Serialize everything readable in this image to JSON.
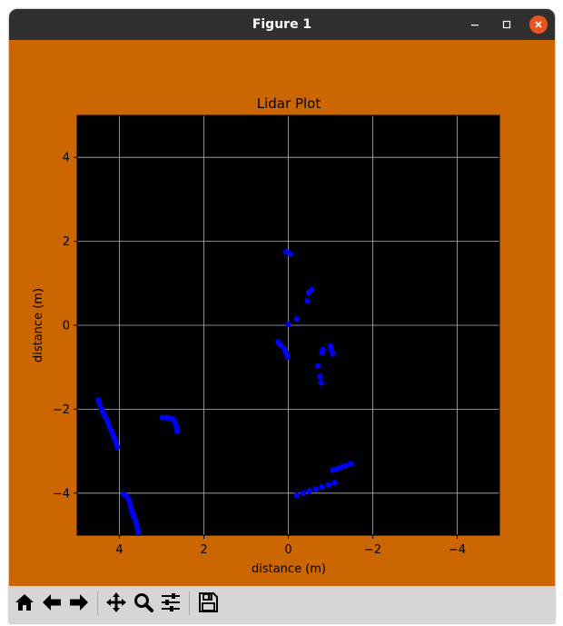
{
  "window": {
    "title": "Figure 1"
  },
  "toolbar": {
    "buttons": [
      {
        "name": "home-button",
        "icon": "home-icon"
      },
      {
        "name": "back-button",
        "icon": "arrow-left-icon"
      },
      {
        "name": "forward-button",
        "icon": "arrow-right-icon"
      },
      {
        "name": "pan-button",
        "icon": "move-icon"
      },
      {
        "name": "zoom-button",
        "icon": "magnifier-icon"
      },
      {
        "name": "configure-subplots-button",
        "icon": "sliders-icon"
      },
      {
        "name": "save-button",
        "icon": "floppy-disk-icon"
      }
    ]
  },
  "colors": {
    "figure_bg": "#cc6600",
    "axes_bg": "#000000",
    "points": "#0000ff",
    "grid": "#b0b0b0",
    "titlebar": "#2f2f2f",
    "close_button": "#e95420"
  },
  "chart_data": {
    "type": "scatter",
    "title": "Lidar Plot",
    "xlabel": "distance (m)",
    "ylabel": "distance (m)",
    "xlim": [
      5,
      -5
    ],
    "ylim": [
      5,
      -5
    ],
    "xticks": [
      4,
      2,
      0,
      -2,
      -4
    ],
    "xtick_labels": [
      "4",
      "2",
      "0",
      "−2",
      "−4"
    ],
    "yticks": [
      -4,
      -2,
      0,
      2,
      4
    ],
    "ytick_labels": [
      "−4",
      "−2",
      "0",
      "2",
      "4"
    ],
    "grid": true,
    "series": [
      {
        "points": [
          [
            3.55,
            -4.95
          ],
          [
            3.57,
            -4.85
          ],
          [
            3.6,
            -4.75
          ],
          [
            3.62,
            -4.65
          ],
          [
            3.66,
            -4.55
          ],
          [
            3.7,
            -4.45
          ],
          [
            3.73,
            -4.35
          ],
          [
            3.75,
            -4.25
          ],
          [
            3.78,
            -4.15
          ],
          [
            3.83,
            -4.07
          ],
          [
            3.9,
            -4.03
          ],
          [
            4.05,
            -2.9
          ],
          [
            4.08,
            -2.8
          ],
          [
            4.12,
            -2.7
          ],
          [
            4.16,
            -2.6
          ],
          [
            4.2,
            -2.5
          ],
          [
            4.24,
            -2.4
          ],
          [
            4.28,
            -2.3
          ],
          [
            4.33,
            -2.2
          ],
          [
            4.38,
            -2.1
          ],
          [
            4.42,
            -2.0
          ],
          [
            4.47,
            -1.88
          ],
          [
            4.5,
            -1.78
          ],
          [
            2.63,
            -2.52
          ],
          [
            2.65,
            -2.42
          ],
          [
            2.68,
            -2.32
          ],
          [
            2.72,
            -2.24
          ],
          [
            2.8,
            -2.22
          ],
          [
            2.88,
            -2.2
          ],
          [
            2.98,
            -2.2
          ],
          [
            -0.2,
            -4.05
          ],
          [
            -0.35,
            -4.0
          ],
          [
            -0.5,
            -3.95
          ],
          [
            -0.65,
            -3.9
          ],
          [
            -0.8,
            -3.85
          ],
          [
            -0.95,
            -3.8
          ],
          [
            -1.1,
            -3.75
          ],
          [
            -1.05,
            -3.45
          ],
          [
            -1.15,
            -3.42
          ],
          [
            -1.25,
            -3.38
          ],
          [
            -1.35,
            -3.35
          ],
          [
            -1.48,
            -3.3
          ],
          [
            -0.78,
            -1.37
          ],
          [
            -0.75,
            -1.22
          ],
          [
            -0.7,
            -0.97
          ],
          [
            -0.8,
            -0.65
          ],
          [
            -0.82,
            -0.58
          ],
          [
            -1.05,
            -0.68
          ],
          [
            -1.02,
            -0.58
          ],
          [
            -1.0,
            -0.5
          ],
          [
            0.02,
            -0.75
          ],
          [
            0.05,
            -0.65
          ],
          [
            0.1,
            -0.55
          ],
          [
            0.18,
            -0.47
          ],
          [
            0.24,
            -0.4
          ],
          [
            0.0,
            0.02
          ],
          [
            -0.2,
            0.15
          ],
          [
            -0.45,
            0.58
          ],
          [
            -0.48,
            0.78
          ],
          [
            -0.55,
            0.85
          ],
          [
            0.05,
            1.75
          ],
          [
            -0.05,
            1.7
          ]
        ]
      }
    ]
  }
}
